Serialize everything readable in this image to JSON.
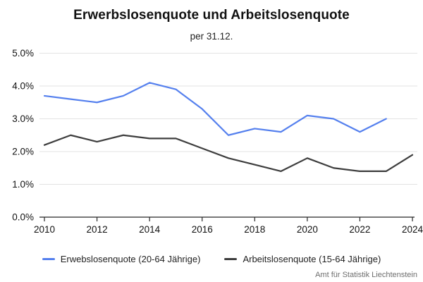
{
  "header": {
    "title": "Erwerbslosenquote und Arbeitslosenquote",
    "subtitle": "per 31.12."
  },
  "source": {
    "label": "Amt für Statistik Liechtenstein"
  },
  "colors": {
    "background": "#FFFFFF",
    "grid": "#E3E3E3",
    "axis": "#262626",
    "title": "#111111",
    "subtitle": "#222222",
    "tick_label": "#111111",
    "legend_text": "#1F1F1F",
    "source": "#6E6E6E",
    "series_blue": "#5580EE",
    "series_dark": "#3E3E3E"
  },
  "chart_data": {
    "type": "line",
    "title": "Erwerbslosenquote und Arbeitslosenquote",
    "subtitle": "per 31.12.",
    "x": [
      2010,
      2011,
      2012,
      2013,
      2014,
      2015,
      2016,
      2017,
      2018,
      2019,
      2020,
      2021,
      2022,
      2023,
      2024
    ],
    "x_tick_labels": [
      "2010",
      "2012",
      "2014",
      "2016",
      "2018",
      "2020",
      "2022",
      "2024"
    ],
    "y_tick_values": [
      0,
      1,
      2,
      3,
      4,
      5
    ],
    "y_tick_labels": [
      "0.0%",
      "1.0%",
      "2.0%",
      "3.0%",
      "4.0%",
      "5.0%"
    ],
    "ylim": [
      0,
      5
    ],
    "grid": "horizontal",
    "legend_position": "bottom",
    "series": [
      {
        "name": "Erwebslosenquote (20-64 Jährige)",
        "color": "#5580EE",
        "values": [
          3.7,
          3.6,
          3.5,
          3.7,
          4.1,
          3.9,
          3.3,
          2.5,
          2.7,
          2.6,
          3.1,
          3.0,
          2.6,
          3.0,
          null
        ]
      },
      {
        "name": "Arbeitslosenquote (15-64 Jährige)",
        "color": "#3E3E3E",
        "values": [
          2.2,
          2.5,
          2.3,
          2.5,
          2.4,
          2.4,
          2.1,
          1.8,
          1.6,
          1.4,
          1.8,
          1.5,
          1.4,
          1.4,
          1.9
        ]
      }
    ]
  }
}
